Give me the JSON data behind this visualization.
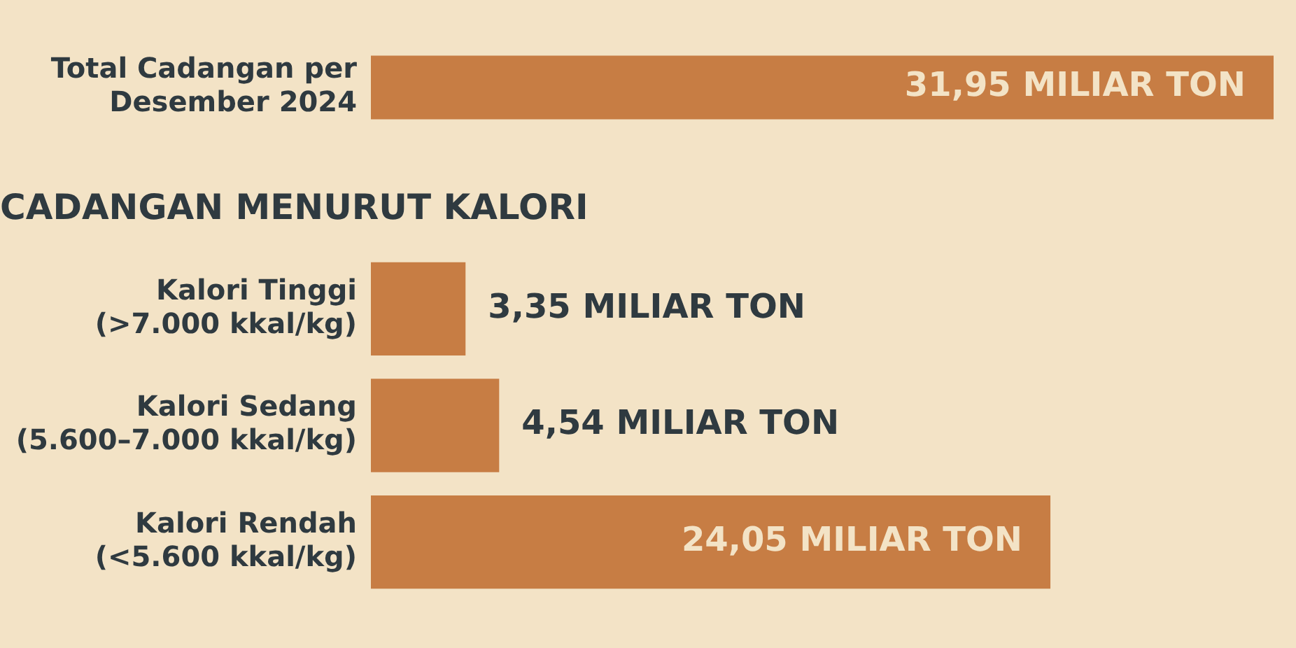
{
  "chart_data": [
    {
      "type": "bar",
      "orientation": "horizontal",
      "categories": [
        "Total Cadangan per Desember 2024"
      ],
      "values": [
        31.95
      ],
      "value_labels": [
        "31,95 MILIAR TON"
      ],
      "color": "#c77d44",
      "legend": false,
      "tick_labels": "y"
    },
    {
      "type": "bar",
      "orientation": "horizontal",
      "title": "CADANGAN MENURUT KALORI",
      "categories": [
        "Kalori Tinggi (>7.000 kkal/kg)",
        "Kalori Sedang (5.600–7.000 kkal/kg)",
        "Kalori Rendah (<5.600 kkal/kg)"
      ],
      "values": [
        3.35,
        4.54,
        24.05
      ],
      "value_labels": [
        "3,35 MILIAR TON",
        "4,54 MILIAR TON",
        "24,05 MILIAR TON"
      ],
      "color": "#c77d44",
      "legend": false,
      "tick_labels": "y"
    }
  ]
}
